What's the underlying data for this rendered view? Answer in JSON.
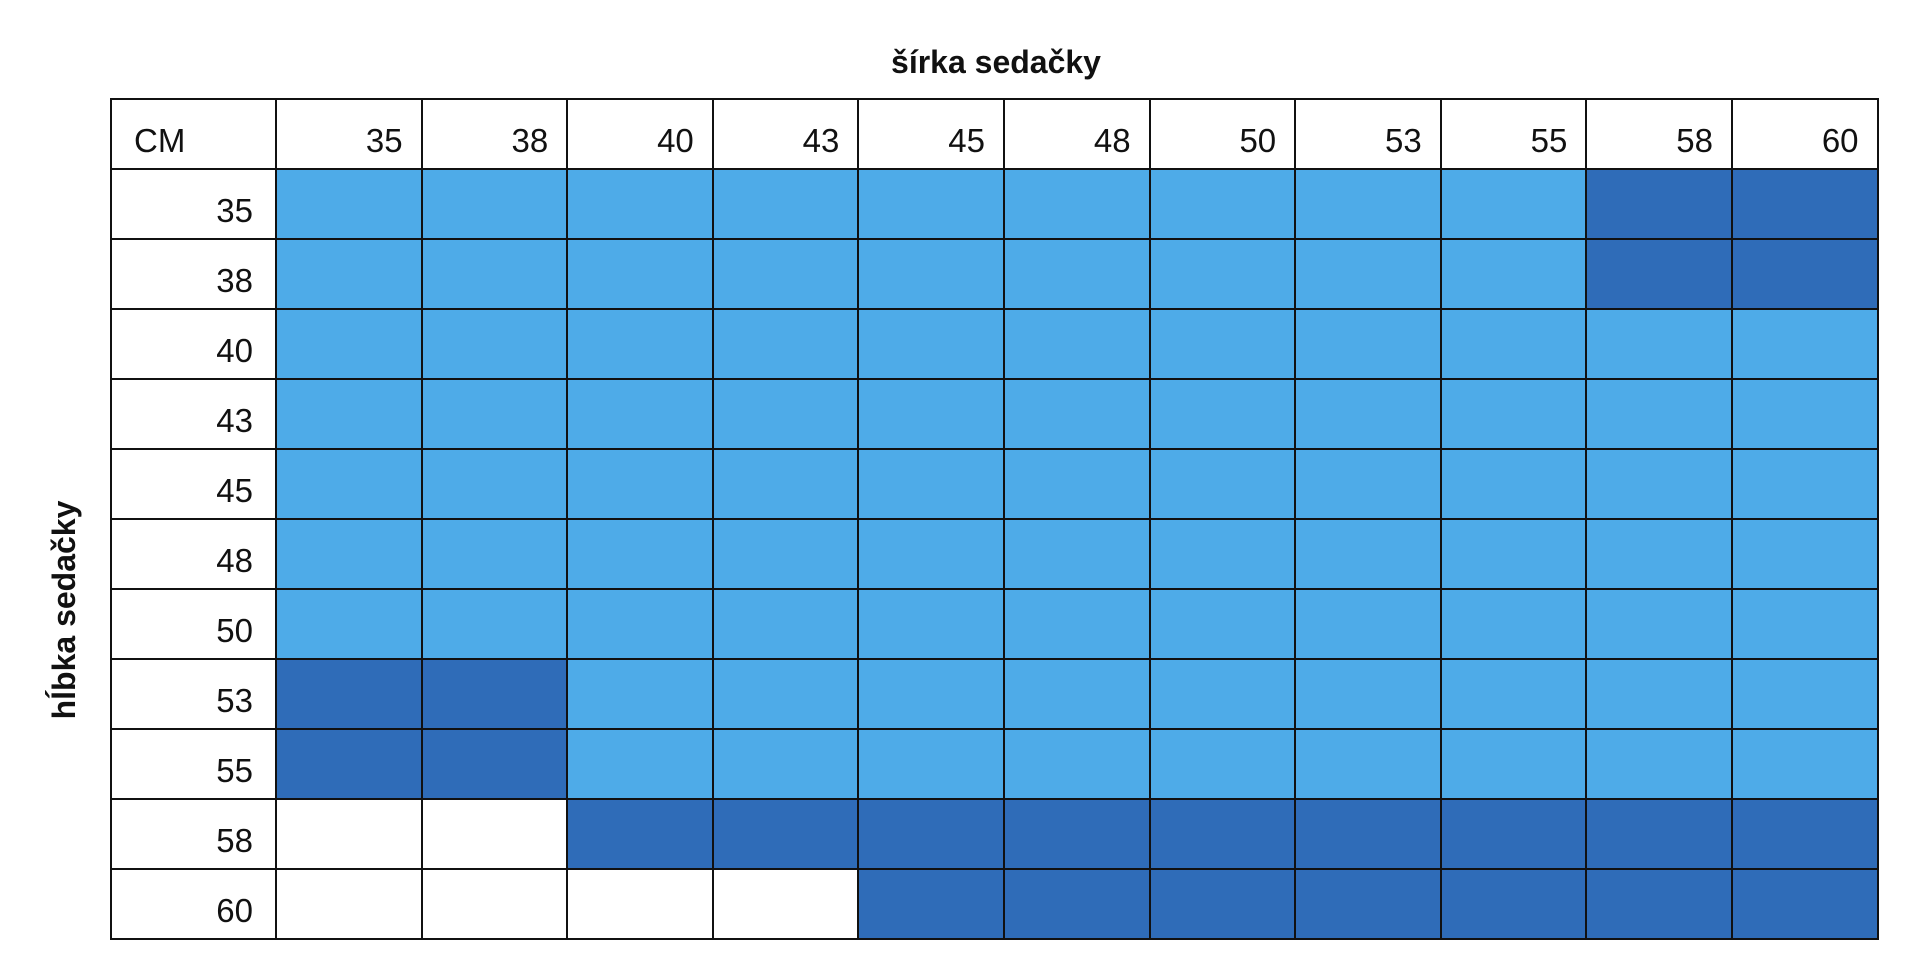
{
  "chart_data": {
    "type": "heatmap",
    "title": "",
    "xlabel": "šírka sedačky",
    "ylabel": "hĺbka sedačky",
    "corner_label": "CM",
    "x": [
      "35",
      "38",
      "40",
      "43",
      "45",
      "48",
      "50",
      "53",
      "55",
      "58",
      "60"
    ],
    "y": [
      "35",
      "38",
      "40",
      "43",
      "45",
      "48",
      "50",
      "53",
      "55",
      "58",
      "60"
    ],
    "levels": {
      "0": "#ffffff",
      "1": "#4eabe8",
      "2": "#2f6cb8"
    },
    "values": [
      [
        1,
        1,
        1,
        1,
        1,
        1,
        1,
        1,
        1,
        2,
        2
      ],
      [
        1,
        1,
        1,
        1,
        1,
        1,
        1,
        1,
        1,
        2,
        2
      ],
      [
        1,
        1,
        1,
        1,
        1,
        1,
        1,
        1,
        1,
        1,
        1
      ],
      [
        1,
        1,
        1,
        1,
        1,
        1,
        1,
        1,
        1,
        1,
        1
      ],
      [
        1,
        1,
        1,
        1,
        1,
        1,
        1,
        1,
        1,
        1,
        1
      ],
      [
        1,
        1,
        1,
        1,
        1,
        1,
        1,
        1,
        1,
        1,
        1
      ],
      [
        1,
        1,
        1,
        1,
        1,
        1,
        1,
        1,
        1,
        1,
        1
      ],
      [
        2,
        2,
        1,
        1,
        1,
        1,
        1,
        1,
        1,
        1,
        1
      ],
      [
        2,
        2,
        1,
        1,
        1,
        1,
        1,
        1,
        1,
        1,
        1
      ],
      [
        0,
        0,
        2,
        2,
        2,
        2,
        2,
        2,
        2,
        2,
        2
      ],
      [
        0,
        0,
        0,
        0,
        2,
        2,
        2,
        2,
        2,
        2,
        2
      ]
    ]
  }
}
